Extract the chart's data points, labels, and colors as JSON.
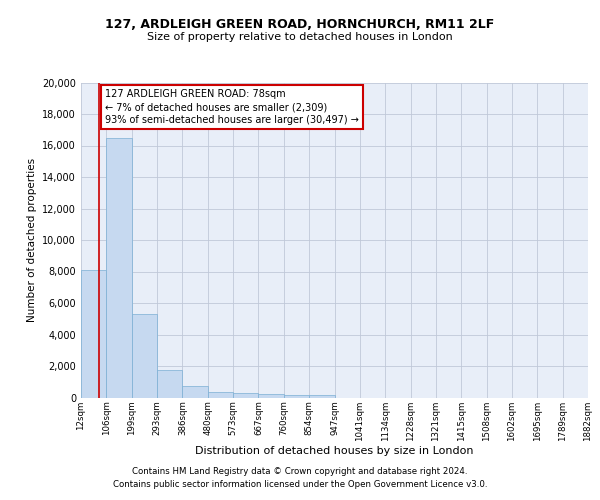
{
  "title1": "127, ARDLEIGH GREEN ROAD, HORNCHURCH, RM11 2LF",
  "title2": "Size of property relative to detached houses in London",
  "xlabel": "Distribution of detached houses by size in London",
  "ylabel": "Number of detached properties",
  "annotation_title": "127 ARDLEIGH GREEN ROAD: 78sqm",
  "annotation_line2": "← 7% of detached houses are smaller (2,309)",
  "annotation_line3": "93% of semi-detached houses are larger (30,497) →",
  "footer1": "Contains HM Land Registry data © Crown copyright and database right 2024.",
  "footer2": "Contains public sector information licensed under the Open Government Licence v3.0.",
  "bin_labels": [
    "12sqm",
    "106sqm",
    "199sqm",
    "293sqm",
    "386sqm",
    "480sqm",
    "573sqm",
    "667sqm",
    "760sqm",
    "854sqm",
    "947sqm",
    "1041sqm",
    "1134sqm",
    "1228sqm",
    "1321sqm",
    "1415sqm",
    "1508sqm",
    "1602sqm",
    "1695sqm",
    "1789sqm",
    "1882sqm"
  ],
  "bar_heights": [
    8100,
    16500,
    5300,
    1750,
    700,
    380,
    290,
    220,
    190,
    160,
    0,
    0,
    0,
    0,
    0,
    0,
    0,
    0,
    0,
    0
  ],
  "bar_color": "#c6d9f0",
  "bar_edge_color": "#7bafd4",
  "annotation_box_color": "#ffffff",
  "annotation_border_color": "#cc0000",
  "marker_line_color": "#cc0000",
  "ylim": [
    0,
    20000
  ],
  "yticks": [
    0,
    2000,
    4000,
    6000,
    8000,
    10000,
    12000,
    14000,
    16000,
    18000,
    20000
  ],
  "bg_color": "#e8eef8",
  "grid_color": "#c0c8d8"
}
